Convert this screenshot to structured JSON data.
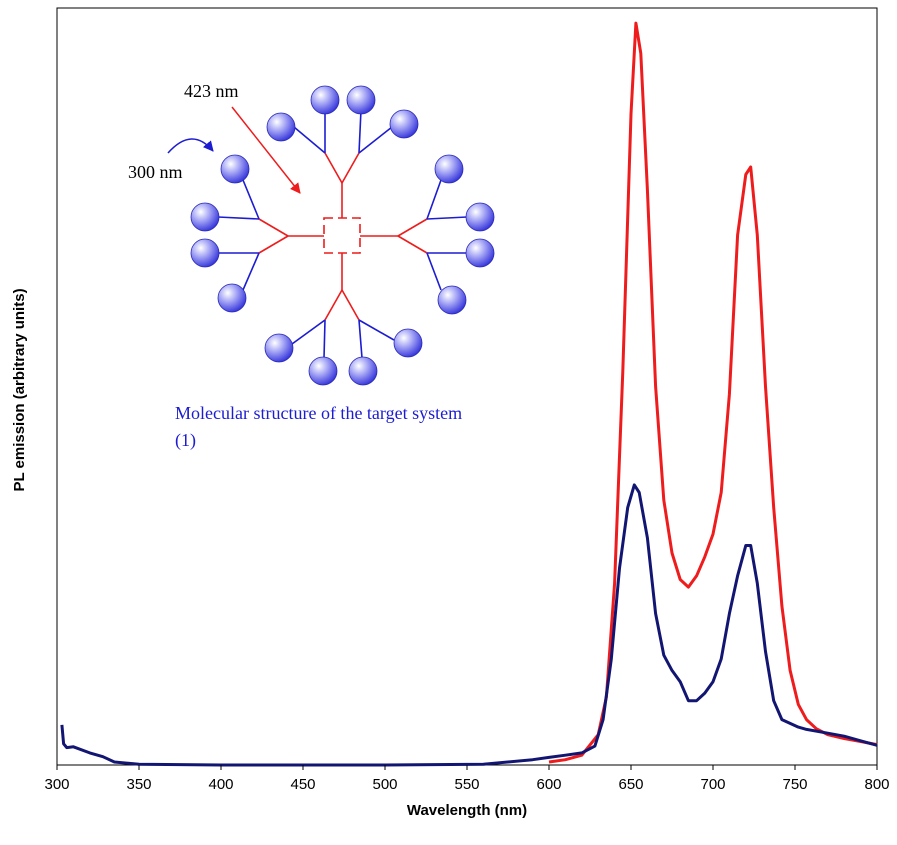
{
  "chart_data": {
    "type": "line",
    "title": "",
    "xlabel": "Wavelength (nm)",
    "ylabel": "PL emission (arbitrary units)",
    "xlim": [
      300,
      800
    ],
    "ylim": [
      0,
      100
    ],
    "x_ticks": [
      300,
      350,
      400,
      450,
      500,
      550,
      600,
      650,
      700,
      750,
      800
    ],
    "x_tick_labels": [
      "300",
      "350",
      "400",
      "450",
      "500",
      "550",
      "600",
      "650",
      "700",
      "750",
      "800"
    ],
    "grid": false,
    "legend": "none",
    "series": [
      {
        "color": "#ee1c1c",
        "points": [
          [
            600,
            0.4
          ],
          [
            610,
            0.7
          ],
          [
            620,
            1.3
          ],
          [
            630,
            4
          ],
          [
            635,
            9
          ],
          [
            640,
            24
          ],
          [
            645,
            52
          ],
          [
            650,
            86
          ],
          [
            653,
            98
          ],
          [
            656,
            94
          ],
          [
            660,
            76
          ],
          [
            665,
            50
          ],
          [
            670,
            35
          ],
          [
            675,
            28
          ],
          [
            680,
            24.5
          ],
          [
            685,
            23.5
          ],
          [
            690,
            25
          ],
          [
            695,
            27.5
          ],
          [
            700,
            30.5
          ],
          [
            705,
            36
          ],
          [
            710,
            49
          ],
          [
            715,
            70
          ],
          [
            720,
            78
          ],
          [
            723,
            79
          ],
          [
            727,
            70
          ],
          [
            732,
            50
          ],
          [
            737,
            34
          ],
          [
            742,
            21
          ],
          [
            747,
            12.5
          ],
          [
            752,
            8
          ],
          [
            757,
            6
          ],
          [
            763,
            4.8
          ],
          [
            770,
            4
          ],
          [
            780,
            3.5
          ],
          [
            790,
            3.1
          ],
          [
            800,
            2.7
          ]
        ]
      },
      {
        "color": "#121672",
        "points": [
          [
            303,
            5.3
          ],
          [
            304,
            2.8
          ],
          [
            306,
            2.3
          ],
          [
            310,
            2.4
          ],
          [
            320,
            1.6
          ],
          [
            328,
            1.1
          ],
          [
            335,
            0.4
          ],
          [
            350,
            0.1
          ],
          [
            400,
            0
          ],
          [
            450,
            0
          ],
          [
            500,
            0
          ],
          [
            560,
            0.1
          ],
          [
            590,
            0.7
          ],
          [
            600,
            1
          ],
          [
            610,
            1.3
          ],
          [
            620,
            1.6
          ],
          [
            628,
            2.5
          ],
          [
            633,
            6
          ],
          [
            638,
            14
          ],
          [
            643,
            26
          ],
          [
            648,
            34
          ],
          [
            652,
            37
          ],
          [
            655,
            36
          ],
          [
            660,
            30
          ],
          [
            665,
            20
          ],
          [
            670,
            14.5
          ],
          [
            675,
            12.5
          ],
          [
            680,
            11
          ],
          [
            685,
            8.5
          ],
          [
            690,
            8.5
          ],
          [
            695,
            9.5
          ],
          [
            700,
            11
          ],
          [
            705,
            14
          ],
          [
            710,
            20
          ],
          [
            715,
            25
          ],
          [
            720,
            29
          ],
          [
            723,
            29
          ],
          [
            727,
            24
          ],
          [
            732,
            15
          ],
          [
            737,
            8.5
          ],
          [
            742,
            6
          ],
          [
            747,
            5.5
          ],
          [
            752,
            5
          ],
          [
            757,
            4.7
          ],
          [
            770,
            4.2
          ],
          [
            780,
            3.8
          ],
          [
            790,
            3.2
          ],
          [
            800,
            2.6
          ]
        ]
      }
    ],
    "annotations": [
      {
        "text": "423 nm",
        "color": "#000000"
      },
      {
        "text": "300 nm",
        "color": "#000000"
      }
    ],
    "inset_caption": {
      "line1": "Molecular structure of the target system",
      "line2": "(1)",
      "color": "#1c1cd2"
    }
  },
  "colors": {
    "frame": "#000000",
    "dendrimer_core": "#ee1c1c",
    "dendrimer_branches": "#1c1cd2",
    "sphere_fill": "#7878ee",
    "arrow_excitation_423": "#ee1c1c",
    "arrow_excitation_300": "#1c1cd2"
  }
}
